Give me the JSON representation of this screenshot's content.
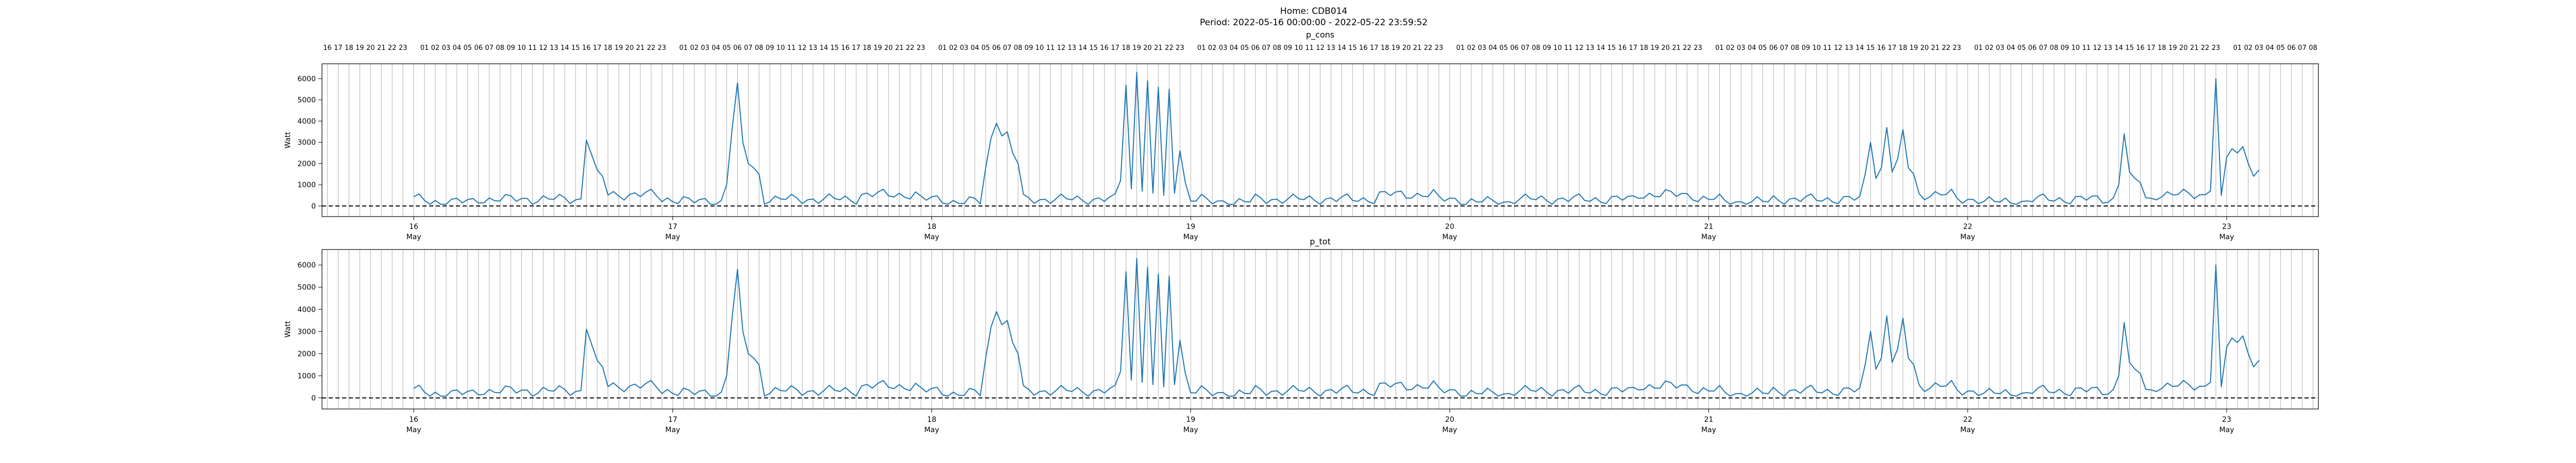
{
  "figure": {
    "title": "Home: CDB014",
    "subtitle": "Period: 2022-05-16 00:00:00 - 2022-05-22 23:59:52"
  },
  "colors": {
    "line": "#1f77b4",
    "grid": "#b0b0b0",
    "axis": "#000000",
    "zero_line": "#000000"
  },
  "chart_data": [
    {
      "type": "line",
      "title": "p_cons",
      "ylabel": "Watt",
      "xlim": [
        "2022-05-15T15:30",
        "2022-05-23T08:30"
      ],
      "ylim": [
        -500,
        6700
      ],
      "yticks": [
        0,
        1000,
        2000,
        3000,
        4000,
        5000,
        6000
      ],
      "grid": "vertical-hourly",
      "reference_line": {
        "y": 0,
        "style": "dashed"
      },
      "top_tick_labels": [
        "16",
        "17",
        "18",
        "19",
        "20",
        "21",
        "22",
        "23",
        "01",
        "02",
        "03",
        "04",
        "05",
        "06",
        "07",
        "08",
        "09",
        "10",
        "11",
        "12",
        "13",
        "14",
        "15",
        "16",
        "17",
        "18",
        "19",
        "20",
        "21",
        "22",
        "23",
        "01",
        "02",
        "03",
        "04",
        "05",
        "06",
        "07",
        "08",
        "09",
        "10",
        "11",
        "12",
        "13",
        "14",
        "15",
        "16",
        "17",
        "18",
        "19",
        "20",
        "21",
        "22",
        "23",
        "01",
        "02",
        "03",
        "04",
        "05",
        "06",
        "07",
        "08",
        "09",
        "10",
        "11",
        "12",
        "13",
        "14",
        "15",
        "16",
        "17",
        "18",
        "19",
        "20",
        "21",
        "22",
        "23",
        "01",
        "02",
        "03",
        "04",
        "05",
        "06",
        "07",
        "08",
        "09",
        "10",
        "11",
        "12",
        "13",
        "14",
        "15",
        "16",
        "17",
        "18",
        "19",
        "20",
        "21",
        "22",
        "23",
        "01",
        "02",
        "03",
        "04",
        "05",
        "06",
        "07",
        "08",
        "09",
        "10",
        "11",
        "12",
        "13",
        "14",
        "15",
        "16",
        "17",
        "18",
        "19",
        "20",
        "21",
        "22",
        "23",
        "01",
        "02",
        "03",
        "04",
        "05",
        "06",
        "07",
        "08",
        "09",
        "10",
        "11",
        "12",
        "13",
        "14",
        "15",
        "16",
        "17",
        "18",
        "19",
        "20",
        "21",
        "22",
        "23",
        "01",
        "02",
        "03",
        "04",
        "05",
        "06",
        "07",
        "08",
        "09",
        "10",
        "11",
        "12",
        "13",
        "14",
        "15",
        "16",
        "17",
        "18",
        "19",
        "20",
        "21",
        "22",
        "23",
        "01",
        "02",
        "03",
        "04",
        "05",
        "06",
        "07",
        "08"
      ],
      "x_tick_labels": [
        {
          "day": "16",
          "month": "May"
        },
        {
          "day": "17",
          "month": "May"
        },
        {
          "day": "18",
          "month": "May"
        },
        {
          "day": "19",
          "month": "May"
        },
        {
          "day": "20",
          "month": "May"
        },
        {
          "day": "21",
          "month": "May"
        },
        {
          "day": "22",
          "month": "May"
        },
        {
          "day": "23",
          "month": "May"
        }
      ],
      "series": [
        {
          "x_start": "2022-05-16T00:00",
          "x_step_minutes": 30,
          "values": []
        }
      ]
    },
    {
      "type": "line",
      "title": "p_tot",
      "ylabel": "Watt",
      "xlim": [
        "2022-05-15T15:30",
        "2022-05-23T08:30"
      ],
      "ylim": [
        -500,
        6700
      ],
      "yticks": [
        0,
        1000,
        2000,
        3000,
        4000,
        5000,
        6000
      ],
      "grid": "vertical-hourly",
      "reference_line": {
        "y": 0,
        "style": "dashed"
      },
      "top_tick_labels": [],
      "x_tick_labels": [
        {
          "day": "16",
          "month": "May"
        },
        {
          "day": "17",
          "month": "May"
        },
        {
          "day": "18",
          "month": "May"
        },
        {
          "day": "19",
          "month": "May"
        },
        {
          "day": "20",
          "month": "May"
        },
        {
          "day": "21",
          "month": "May"
        },
        {
          "day": "22",
          "month": "May"
        },
        {
          "day": "23",
          "month": "May"
        }
      ],
      "series": [
        {
          "x_start": "2022-05-16T00:00",
          "x_step_minutes": 30,
          "values": []
        }
      ]
    }
  ]
}
